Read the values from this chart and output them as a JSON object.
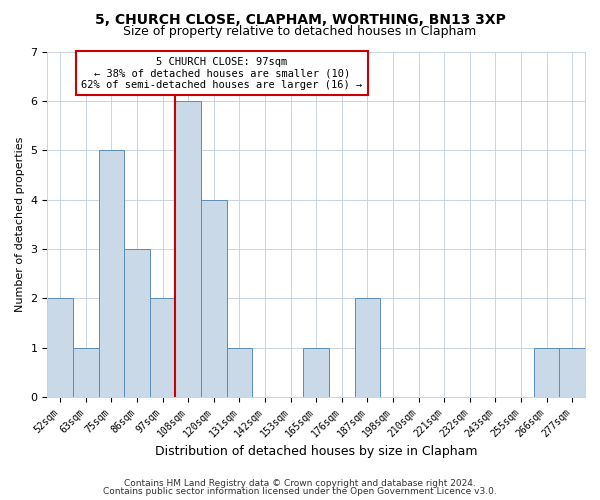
{
  "title1": "5, CHURCH CLOSE, CLAPHAM, WORTHING, BN13 3XP",
  "title2": "Size of property relative to detached houses in Clapham",
  "xlabel": "Distribution of detached houses by size in Clapham",
  "ylabel": "Number of detached properties",
  "categories": [
    "52sqm",
    "63sqm",
    "75sqm",
    "86sqm",
    "97sqm",
    "108sqm",
    "120sqm",
    "131sqm",
    "142sqm",
    "153sqm",
    "165sqm",
    "176sqm",
    "187sqm",
    "198sqm",
    "210sqm",
    "221sqm",
    "232sqm",
    "243sqm",
    "255sqm",
    "266sqm",
    "277sqm"
  ],
  "values": [
    2,
    1,
    5,
    3,
    2,
    6,
    4,
    1,
    0,
    0,
    1,
    0,
    2,
    0,
    0,
    0,
    0,
    0,
    0,
    1,
    1
  ],
  "bar_color": "#c9d9e8",
  "bar_edge_color": "#5b8db8",
  "red_line_x": 4.5,
  "ylim": [
    0,
    7
  ],
  "yticks": [
    0,
    1,
    2,
    3,
    4,
    5,
    6,
    7
  ],
  "annotation_text": "5 CHURCH CLOSE: 97sqm\n← 38% of detached houses are smaller (10)\n62% of semi-detached houses are larger (16) →",
  "annotation_box_color": "#ffffff",
  "annotation_box_edge": "#cc0000",
  "footer1": "Contains HM Land Registry data © Crown copyright and database right 2024.",
  "footer2": "Contains public sector information licensed under the Open Government Licence v3.0.",
  "bg_color": "#ffffff",
  "grid_color": "#c8d4e0",
  "title1_fontsize": 10,
  "title2_fontsize": 9
}
